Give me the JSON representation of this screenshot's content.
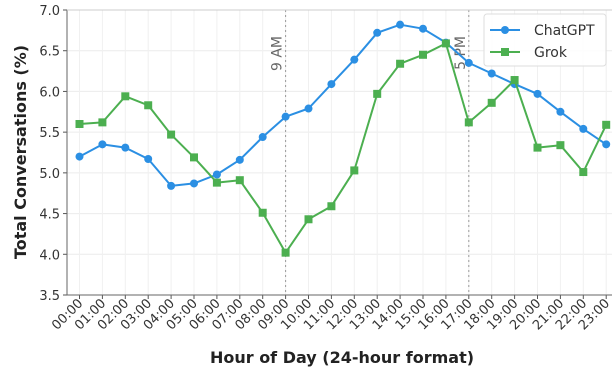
{
  "chart_data": {
    "type": "line",
    "xlabel": "Hour of Day (24-hour format)",
    "ylabel": "Total Conversations (%)",
    "ylim": [
      3.5,
      7.0
    ],
    "yticks": [
      "3.5",
      "4.0",
      "4.5",
      "5.0",
      "5.5",
      "6.0",
      "6.5",
      "7.0"
    ],
    "categories": [
      "00:00",
      "01:00",
      "02:00",
      "03:00",
      "04:00",
      "05:00",
      "06:00",
      "07:00",
      "08:00",
      "09:00",
      "10:00",
      "11:00",
      "12:00",
      "13:00",
      "14:00",
      "15:00",
      "16:00",
      "17:00",
      "18:00",
      "19:00",
      "20:00",
      "21:00",
      "22:00",
      "23:00"
    ],
    "grid": true,
    "legend_position": "top-right",
    "series": [
      {
        "name": "ChatGPT",
        "color": "#2b8fe3",
        "marker": "circle",
        "values": [
          5.2,
          5.35,
          5.31,
          5.17,
          4.84,
          4.87,
          4.98,
          5.16,
          5.44,
          5.69,
          5.79,
          6.09,
          6.39,
          6.72,
          6.82,
          6.77,
          6.6,
          6.35,
          6.22,
          6.09,
          5.97,
          5.75,
          5.54,
          5.35
        ]
      },
      {
        "name": "Grok",
        "color": "#4caf50",
        "marker": "square",
        "values": [
          5.6,
          5.62,
          5.94,
          5.83,
          5.47,
          5.19,
          4.88,
          4.91,
          4.51,
          4.02,
          4.43,
          4.59,
          5.03,
          5.97,
          6.34,
          6.45,
          6.59,
          5.62,
          5.86,
          6.14,
          5.31,
          5.34,
          5.01,
          5.59
        ]
      }
    ],
    "annotations": [
      {
        "label": "9 AM",
        "x_index": 9
      },
      {
        "label": "5 PM",
        "x_index": 17
      }
    ]
  }
}
